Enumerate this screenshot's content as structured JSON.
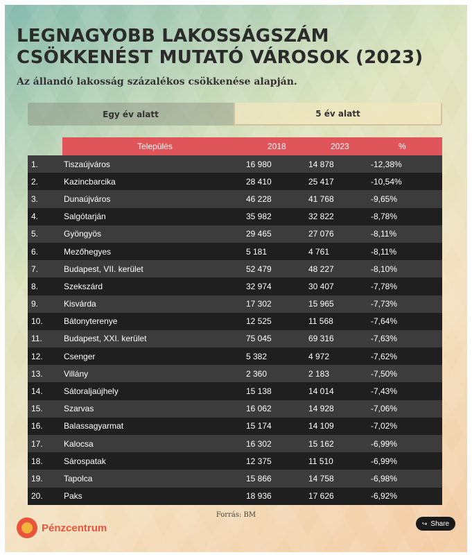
{
  "title": "LEGNAGYOBB LAKOSSÁGSZÁM CSÖKKENÉST MUTATÓ VÁROSOK (2023)",
  "subtitle": "Az állandó lakosság százalékos csökkenése alapján.",
  "tabs": [
    {
      "label": "Egy év alatt",
      "active": false
    },
    {
      "label": "5 év alatt",
      "active": true
    }
  ],
  "chart_data": {
    "type": "table",
    "columns": [
      "",
      "Település",
      "2018",
      "2023",
      "%"
    ],
    "rows": [
      [
        "1.",
        "Tiszaújváros",
        "16 980",
        "14 878",
        "-12,38%"
      ],
      [
        "2.",
        "Kazincbarcika",
        "28 410",
        "25 417",
        "-10,54%"
      ],
      [
        "3.",
        "Dunaújváros",
        "46 228",
        "41 768",
        "-9,65%"
      ],
      [
        "4.",
        "Salgótarján",
        "35 982",
        "32 822",
        "-8,78%"
      ],
      [
        "5.",
        "Gyöngyös",
        "29 465",
        "27 076",
        "-8,11%"
      ],
      [
        "6.",
        "Mezőhegyes",
        "5 181",
        "4 761",
        "-8,11%"
      ],
      [
        "7.",
        "Budapest, VII. kerület",
        "52 479",
        "48 227",
        "-8,10%"
      ],
      [
        "8.",
        "Szekszárd",
        "32 974",
        "30 407",
        "-7,78%"
      ],
      [
        "9.",
        "Kisvárda",
        "17 302",
        "15 965",
        "-7,73%"
      ],
      [
        "10.",
        "Bátonyterenye",
        "12 525",
        "11 568",
        "-7,64%"
      ],
      [
        "11.",
        "Budapest, XXI. kerület",
        "75 045",
        "69 316",
        "-7,63%"
      ],
      [
        "12.",
        "Csenger",
        "5 382",
        "4 972",
        "-7,62%"
      ],
      [
        "13.",
        "Villány",
        "2 360",
        "2 183",
        "-7,50%"
      ],
      [
        "14.",
        "Sátoraljaújhely",
        "15 138",
        "14 014",
        "-7,43%"
      ],
      [
        "15.",
        "Szarvas",
        "16 062",
        "14 928",
        "-7,06%"
      ],
      [
        "16.",
        "Balassagyarmat",
        "15 174",
        "14 109",
        "-7,02%"
      ],
      [
        "17.",
        "Kalocsa",
        "16 302",
        "15 162",
        "-6,99%"
      ],
      [
        "18.",
        "Sárospatak",
        "12 375",
        "11 510",
        "-6,99%"
      ],
      [
        "19.",
        "Tapolca",
        "15 866",
        "14 758",
        "-6,98%"
      ],
      [
        "20.",
        "Paks",
        "18 936",
        "17 626",
        "-6,92%"
      ]
    ]
  },
  "source": "Forrás: BM",
  "logo": {
    "text": "Pénzcentrum"
  },
  "share": {
    "label": "Share",
    "icon": "share-icon"
  },
  "colors": {
    "header": "#e0555a",
    "row_dark": "#1f1f1f",
    "row_light": "#3c3c3c",
    "brand": "#e8553c"
  }
}
